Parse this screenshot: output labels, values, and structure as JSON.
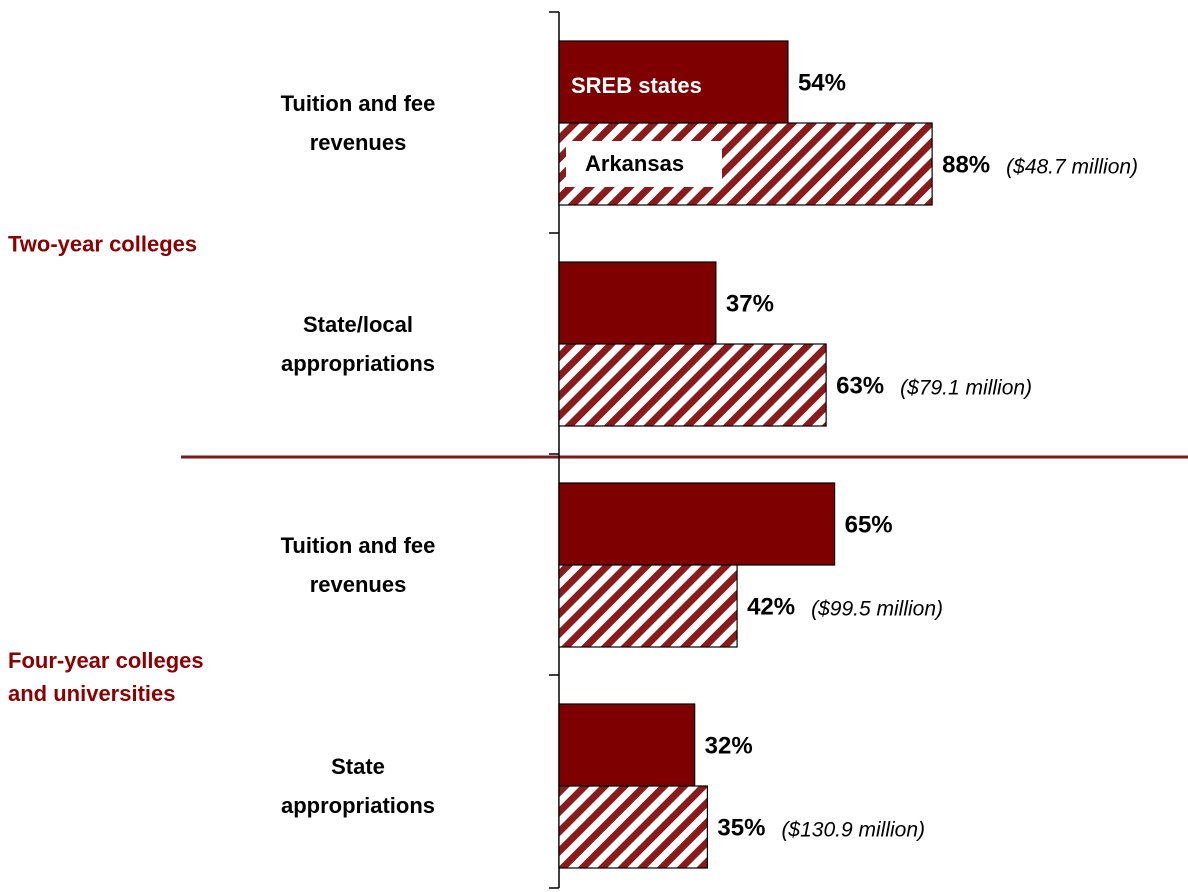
{
  "chart_data": {
    "type": "bar",
    "orientation": "horizontal",
    "categories": [
      "Tuition and fee\nrevenues",
      "State/local\nappropriations",
      "Tuition and fee\nrevenues",
      "State\nappropriations"
    ],
    "groups": [
      "Two-year colleges",
      "Four-year colleges\nand universities"
    ],
    "series": [
      {
        "name": "SREB states",
        "color": "#7f0000",
        "pattern": "solid",
        "values": [
          54,
          37,
          65,
          32
        ],
        "value_labels": [
          "54%",
          "37%",
          "65%",
          "32%"
        ]
      },
      {
        "name": "Arkansas",
        "color": "#8b1a1a",
        "pattern": "hatch",
        "values": [
          88,
          63,
          42,
          35
        ],
        "value_labels": [
          "88%",
          "63%",
          "42%",
          "35%"
        ]
      }
    ],
    "annotations": [
      "($48.7 million)",
      "($79.1 million)",
      "($99.5 million)",
      "($130.9 million)"
    ],
    "xlim": [
      0,
      100
    ]
  }
}
